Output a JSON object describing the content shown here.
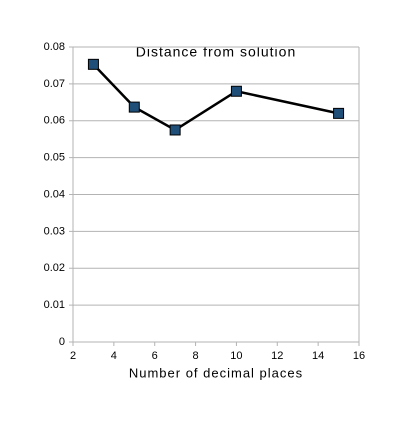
{
  "chart_data": {
    "type": "line",
    "title": "Distance from solution",
    "x_label": "Number of decimal places",
    "x": [
      3,
      5,
      7,
      10,
      15
    ],
    "values": [
      0.0753,
      0.0637,
      0.0575,
      0.068,
      0.062
    ],
    "color": "#000000",
    "marker_color": "#1f4e79",
    "xlim": [
      2,
      16
    ],
    "xticks": [
      2,
      4,
      6,
      8,
      10,
      12,
      14,
      16
    ],
    "ylim": [
      0,
      0.08
    ],
    "yticks": [
      0,
      0.01,
      0.02,
      0.03,
      0.04,
      0.05,
      0.06,
      0.07,
      0.08
    ],
    "grid": true
  }
}
